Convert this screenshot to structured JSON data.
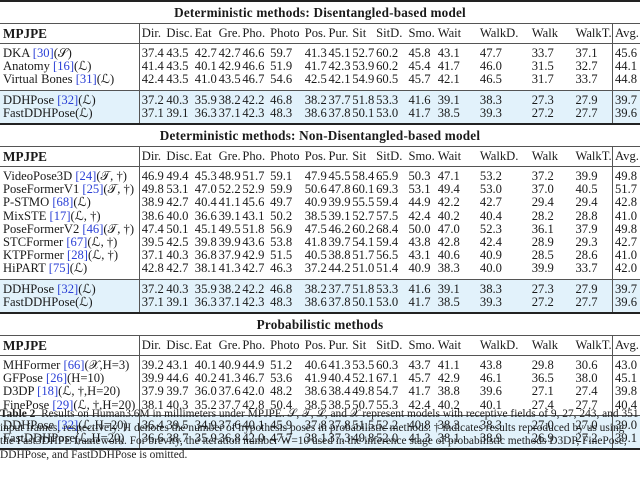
{
  "columns": [
    "Dir.",
    "Disc.",
    "Eat",
    "Gre.",
    "Pho.",
    "Photo",
    "Pos.",
    "Pur.",
    "Sit",
    "SitD.",
    "Smo.",
    "Wait",
    "WalkD.",
    "Walk",
    "WalkT.",
    "Avg."
  ],
  "metric_label": "MPJPE",
  "highlight_color": "#e2f2fb",
  "sections": [
    {
      "title": "Deterministic methods: Disentangled-based model",
      "groups": [
        [
          {
            "name": "DKA ",
            "ref": "[30]",
            "tag": "(𝒮)",
            "values": [
              "37.4",
              "43.5",
              "42.7",
              "42.7",
              "46.6",
              "59.7",
              "41.3",
              "45.1",
              "52.7",
              "60.2",
              "45.8",
              "43.1",
              "47.7",
              "33.7",
              "37.1"
            ],
            "avg": "45.6"
          },
          {
            "name": "Anatomy ",
            "ref": "[16]",
            "tag": "(ℒ)",
            "values": [
              "41.4",
              "43.5",
              "40.1",
              "42.9",
              "46.6",
              "51.9",
              "41.7",
              "42.3",
              "53.9",
              "60.2",
              "45.4",
              "41.7",
              "46.0",
              "31.5",
              "32.7"
            ],
            "avg": "44.1"
          },
          {
            "name": "Virtual Bones ",
            "ref": "[31]",
            "tag": "(ℒ)",
            "values": [
              "42.4",
              "43.5",
              "41.0",
              "43.5",
              "46.7",
              "54.6",
              "42.5",
              "42.1",
              "54.9",
              "60.5",
              "45.7",
              "42.1",
              "46.5",
              "31.7",
              "33.7"
            ],
            "avg": "44.8"
          }
        ],
        [
          {
            "name": "DDHPose ",
            "ref": "[32]",
            "tag": "(ℒ)",
            "values": [
              "37.2",
              "40.3",
              "35.9",
              "38.2",
              "42.2",
              "46.8",
              "38.2",
              "37.7",
              "51.8",
              "53.3",
              "41.6",
              "39.1",
              "38.3",
              "27.3",
              "27.9"
            ],
            "avg": "39.7"
          },
          {
            "name": "FastDDHPose",
            "ref": "",
            "tag": "(ℒ)",
            "values": [
              "37.1",
              "39.1",
              "36.3",
              "37.1",
              "42.3",
              "48.3",
              "38.6",
              "37.8",
              "50.1",
              "53.0",
              "41.7",
              "38.5",
              "39.3",
              "27.2",
              "27.7"
            ],
            "avg": "39.6"
          }
        ]
      ]
    },
    {
      "title": "Deterministic methods: Non-Disentangled-based model",
      "groups": [
        [
          {
            "name": "VideoPose3D ",
            "ref": "[24]",
            "tag": "(𝒯, †)",
            "values": [
              "46.9",
              "49.4",
              "45.3",
              "48.9",
              "51.7",
              "59.1",
              "47.9",
              "45.5",
              "58.4",
              "65.9",
              "50.3",
              "47.1",
              "53.2",
              "37.2",
              "39.9"
            ],
            "avg": "49.8"
          },
          {
            "name": "PoseFormerV1 ",
            "ref": "[25]",
            "tag": "(𝒯, †)",
            "values": [
              "49.8",
              "53.1",
              "47.0",
              "52.2",
              "52.9",
              "59.9",
              "50.6",
              "47.8",
              "60.1",
              "69.3",
              "53.1",
              "49.4",
              "53.0",
              "37.0",
              "40.5"
            ],
            "avg": "51.7"
          },
          {
            "name": "P-STMO ",
            "ref": "[68]",
            "tag": "(ℒ)",
            "values": [
              "38.9",
              "42.7",
              "40.4",
              "41.1",
              "45.6",
              "49.7",
              "40.9",
              "39.9",
              "55.5",
              "59.4",
              "44.9",
              "42.2",
              "42.7",
              "29.4",
              "29.4"
            ],
            "avg": "42.8"
          },
          {
            "name": "MixSTE ",
            "ref": "[17]",
            "tag": "(ℒ, †)",
            "values": [
              "38.6",
              "40.0",
              "36.6",
              "39.1",
              "43.1",
              "50.2",
              "38.5",
              "39.1",
              "52.7",
              "57.5",
              "42.4",
              "40.2",
              "40.4",
              "28.2",
              "28.8"
            ],
            "avg": "41.0"
          },
          {
            "name": "PoseFormerV2 ",
            "ref": "[46]",
            "tag": "(𝒯, †)",
            "values": [
              "47.4",
              "50.1",
              "45.1",
              "49.5",
              "51.8",
              "56.9",
              "47.5",
              "46.2",
              "60.2",
              "68.4",
              "50.0",
              "47.0",
              "52.3",
              "36.1",
              "37.9"
            ],
            "avg": "49.8"
          },
          {
            "name": "STCFormer ",
            "ref": "[67]",
            "tag": "(ℒ, †)",
            "values": [
              "39.5",
              "42.5",
              "39.8",
              "39.9",
              "43.6",
              "53.8",
              "41.8",
              "39.7",
              "54.1",
              "59.4",
              "43.8",
              "42.8",
              "42.4",
              "28.9",
              "29.3"
            ],
            "avg": "42.7"
          },
          {
            "name": "KTPFormer ",
            "ref": "[28]",
            "tag": "(ℒ, †)",
            "values": [
              "37.1",
              "40.3",
              "36.8",
              "37.9",
              "42.9",
              "51.5",
              "40.5",
              "38.8",
              "51.7",
              "56.5",
              "43.1",
              "40.6",
              "40.9",
              "28.5",
              "28.6"
            ],
            "avg": "41.0"
          },
          {
            "name": "HiPART ",
            "ref": "[75]",
            "tag": "(ℒ)",
            "values": [
              "42.8",
              "42.7",
              "38.1",
              "41.3",
              "42.7",
              "46.3",
              "37.2",
              "44.2",
              "51.0",
              "51.4",
              "40.9",
              "38.3",
              "40.0",
              "39.9",
              "33.7"
            ],
            "avg": "42.0"
          }
        ],
        [
          {
            "name": "DDHPose ",
            "ref": "[32]",
            "tag": "(ℒ)",
            "values": [
              "37.2",
              "40.3",
              "35.9",
              "38.2",
              "42.2",
              "46.8",
              "38.2",
              "37.7",
              "51.8",
              "53.3",
              "41.6",
              "39.1",
              "38.3",
              "27.3",
              "27.9"
            ],
            "avg": "39.7"
          },
          {
            "name": "FastDDHPose",
            "ref": "",
            "tag": "(ℒ)",
            "values": [
              "37.1",
              "39.1",
              "36.3",
              "37.1",
              "42.3",
              "48.3",
              "38.6",
              "37.8",
              "50.1",
              "53.0",
              "41.7",
              "38.5",
              "39.3",
              "27.2",
              "27.7"
            ],
            "avg": "39.6"
          }
        ]
      ]
    },
    {
      "title": "Probabilistic methods",
      "groups": [
        [
          {
            "name": "MHFormer ",
            "ref": "[66]",
            "tag": "(𝒳,H=3)",
            "values": [
              "39.2",
              "43.1",
              "40.1",
              "40.9",
              "44.9",
              "51.2",
              "40.6",
              "41.3",
              "53.5",
              "60.3",
              "43.7",
              "41.1",
              "43.8",
              "29.8",
              "30.6"
            ],
            "avg": "43.0"
          },
          {
            "name": "GFPose ",
            "ref": "[26]",
            "tag": "(H=10)",
            "values": [
              "39.9",
              "44.6",
              "40.2",
              "41.3",
              "46.7",
              "53.6",
              "41.9",
              "40.4",
              "52.1",
              "67.1",
              "45.7",
              "42.9",
              "46.1",
              "36.5",
              "38.0"
            ],
            "avg": "45.1"
          },
          {
            "name": "D3DP ",
            "ref": "[18]",
            "tag": "(ℒ, †,H=20)",
            "values": [
              "37.9",
              "39.7",
              "36.0",
              "37.6",
              "42.0",
              "48.2",
              "38.6",
              "38.4",
              "49.8",
              "54.7",
              "41.7",
              "38.8",
              "39.6",
              "27.1",
              "27.4"
            ],
            "avg": "39.8"
          },
          {
            "name": "FinePose ",
            "ref": "[29]",
            "tag": "(ℒ, †,H=20)",
            "values": [
              "38.1",
              "40.3",
              "35.2",
              "37.7",
              "42.8",
              "50.4",
              "38.5",
              "38.5",
              "50.7",
              "55.3",
              "42.4",
              "40.2",
              "40.1",
              "27.4",
              "27.7"
            ],
            "avg": "40.4"
          }
        ],
        [
          {
            "name": "DDHPose ",
            "ref": "[32]",
            "tag": "(ℒ,H=20)",
            "values": [
              "36.4",
              "39.5",
              "34.9",
              "37.6",
              "40.1",
              "45.9",
              "37.8",
              "37.8",
              "51.5",
              "52.2",
              "40.8",
              "38.3",
              "38.3",
              "27.0",
              "27.0"
            ],
            "avg": "39.0"
          },
          {
            "name": "FastDDHPose",
            "ref": "",
            "tag": "(ℒ,H=20)",
            "values": [
              "36.6",
              "38.7",
              "35.9",
              "36.8",
              "42.0",
              "47.7",
              "38.1",
              "37.3",
              "49.8",
              "52.0",
              "41.3",
              "38.1",
              "38.9",
              "26.9",
              "27.2"
            ],
            "avg": "39.1"
          }
        ]
      ]
    }
  ],
  "caption": {
    "label": "Table 2",
    "text": "Results on Human3.6M in millimeters under MPJPE. 𝒮, 𝒯, ℒ, and 𝒳 represent models with receptive fields of 9, 27, 243, and 351 input frames, respectively. H denotes the number of hypothesis poses in probabilistic methods. † indicates results reproduced by us using the Fast3DHPE framework. For brevity, the iteration number W=10 used in the inference stage of probabilistic methods D3DP, FinePose, DDHPose, and FastDDHPose is omitted."
  }
}
